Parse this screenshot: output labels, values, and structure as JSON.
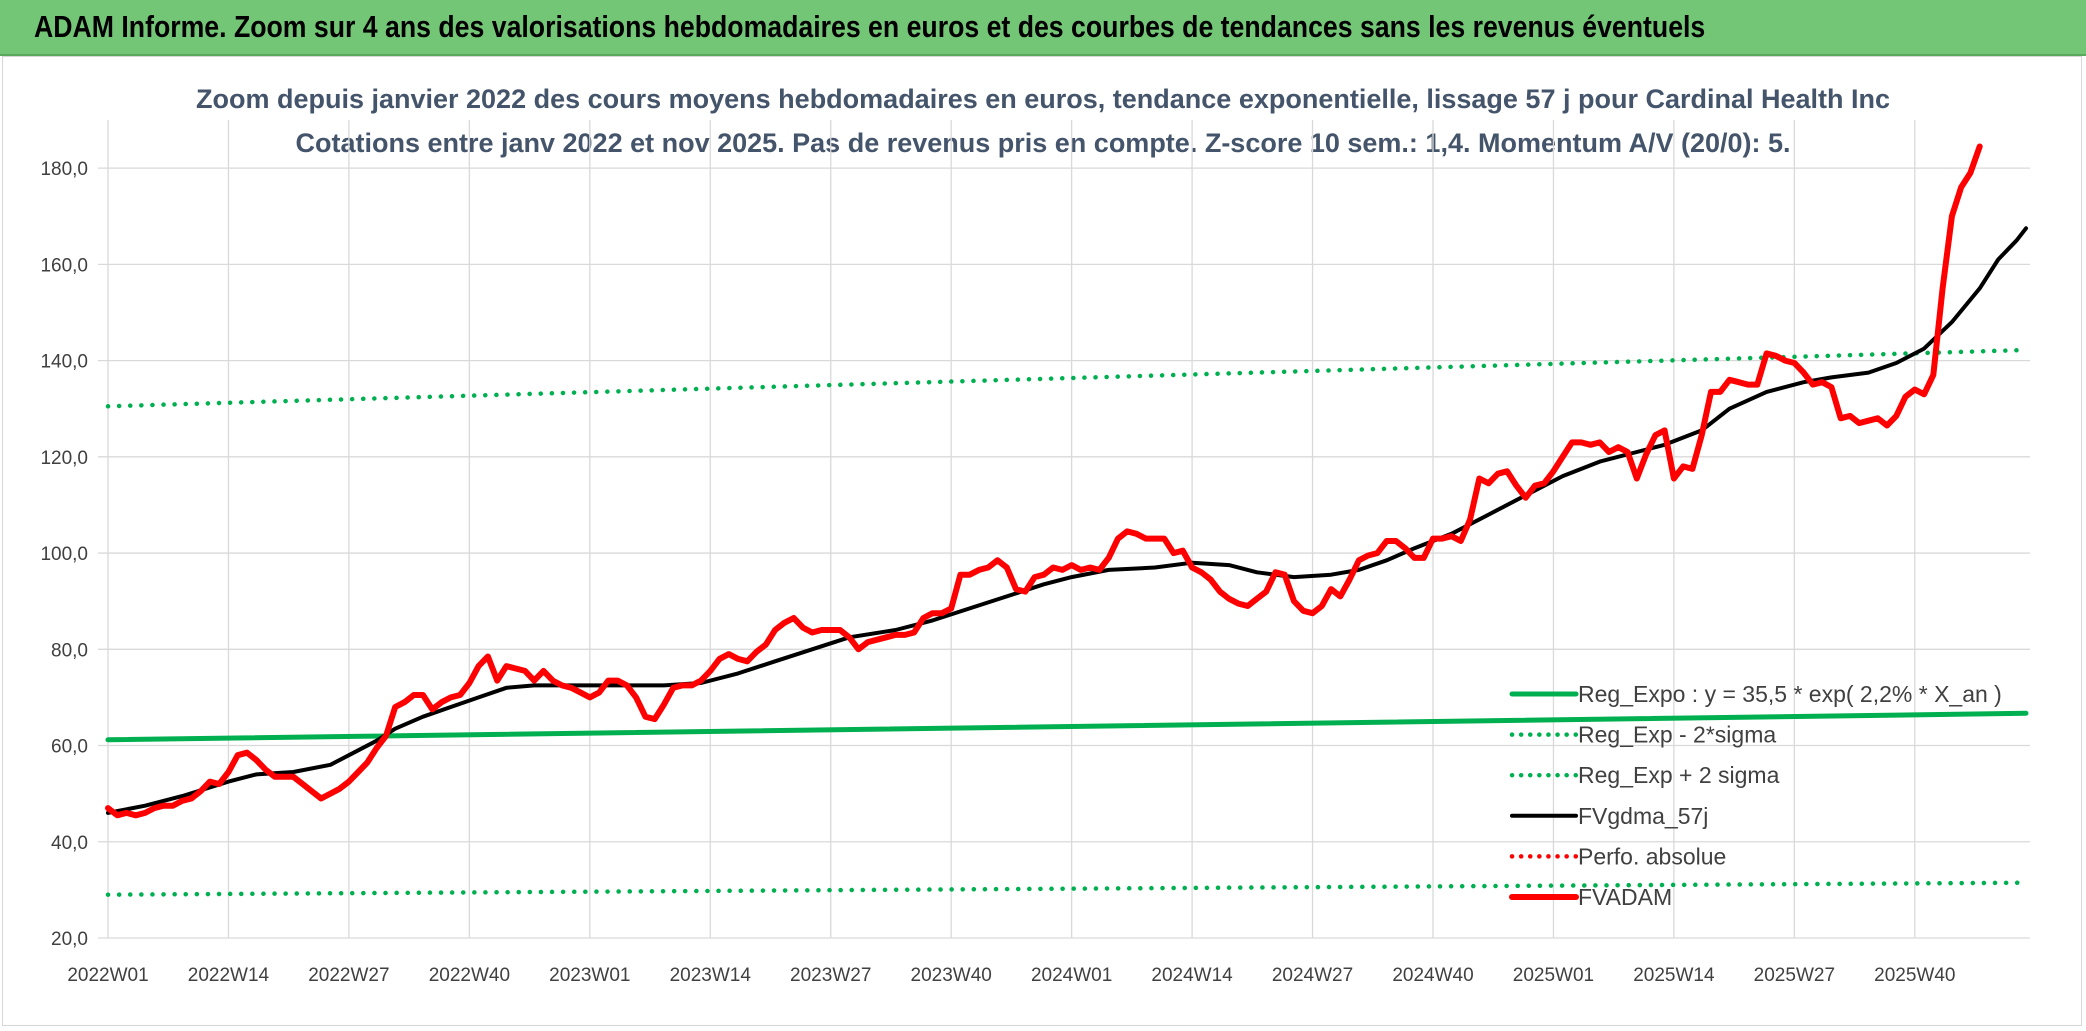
{
  "header": {
    "title": "ADAM Informe. Zoom sur 4 ans des valorisations hebdomadaires en euros et des courbes de tendances sans les revenus éventuels"
  },
  "colors": {
    "banner": "#74c677",
    "reg_expo": "#00b050",
    "sigma": "#00b050",
    "fvgdma": "#000000",
    "perfo": "#ff0000",
    "fvadam": "#ff0000",
    "grid": "#d9d9d9"
  },
  "chart_data": {
    "type": "line",
    "title": "Zoom depuis janvier 2022 des cours moyens hebdomadaires en euros, tendance exponentielle, lissage 57 j pour Cardinal Health Inc",
    "subtitle": "Cotations entre janv 2022 et nov 2025. Pas de revenus pris en compte. Z-score 10 sem.: 1,4. Momentum A/V (20/0): 5.",
    "xlabel": "",
    "ylabel": "",
    "ylim": [
      20,
      190
    ],
    "y_ticks": [
      "20,0",
      "40,0",
      "60,0",
      "80,0",
      "100,0",
      "120,0",
      "140,0",
      "160,0",
      "180,0"
    ],
    "x_tick_labels": [
      "2022W01",
      "2022W14",
      "2022W27",
      "2022W40",
      "2023W01",
      "2023W14",
      "2023W27",
      "2023W40",
      "2024W01",
      "2024W14",
      "2024W27",
      "2024W40",
      "2025W01",
      "2025W14",
      "2025W27",
      "2025W40"
    ],
    "x_tick_weeks": [
      0,
      13,
      26,
      39,
      52,
      65,
      78,
      91,
      104,
      117,
      130,
      143,
      156,
      169,
      182,
      195
    ],
    "x_range_weeks": [
      0,
      207
    ],
    "grid": true,
    "legend_position": "bottom-right",
    "series": [
      {
        "name": "Reg_Expo : y = 35,5 * exp( 2,2% *  X_an )",
        "style": "solid-thick",
        "color": "#00b050",
        "points": [
          [
            0,
            61.2
          ],
          [
            207,
            66.7
          ]
        ]
      },
      {
        "name": "Reg_Exp - 2*sigma",
        "style": "dotted",
        "color": "#00b050",
        "points": [
          [
            0,
            29.0
          ],
          [
            207,
            31.5
          ]
        ]
      },
      {
        "name": "Reg_Exp + 2 sigma",
        "style": "dotted",
        "color": "#00b050",
        "points": [
          [
            0,
            130.5
          ],
          [
            207,
            142.2
          ]
        ]
      },
      {
        "name": "FVgdma_57j",
        "style": "solid",
        "color": "#000000",
        "points": [
          [
            0,
            46
          ],
          [
            4,
            47.5
          ],
          [
            8,
            49.5
          ],
          [
            13,
            52.5
          ],
          [
            16,
            54
          ],
          [
            20,
            54.5
          ],
          [
            24,
            56
          ],
          [
            26,
            58
          ],
          [
            29,
            61
          ],
          [
            31,
            63.5
          ],
          [
            34,
            66
          ],
          [
            37,
            68
          ],
          [
            40,
            70
          ],
          [
            43,
            72
          ],
          [
            46,
            72.5
          ],
          [
            52,
            72.5
          ],
          [
            56,
            72.5
          ],
          [
            60,
            72.5
          ],
          [
            64,
            73
          ],
          [
            68,
            75
          ],
          [
            72,
            77.5
          ],
          [
            76,
            80
          ],
          [
            80,
            82.5
          ],
          [
            85,
            84
          ],
          [
            89,
            86
          ],
          [
            93,
            88.5
          ],
          [
            97,
            91
          ],
          [
            101,
            93.5
          ],
          [
            104,
            95
          ],
          [
            108,
            96.5
          ],
          [
            113,
            97
          ],
          [
            117,
            98
          ],
          [
            121,
            97.5
          ],
          [
            124,
            96
          ],
          [
            128,
            95
          ],
          [
            132,
            95.5
          ],
          [
            135,
            96.5
          ],
          [
            138,
            98.5
          ],
          [
            141,
            101
          ],
          [
            145,
            104
          ],
          [
            149,
            108
          ],
          [
            153,
            112
          ],
          [
            157,
            116
          ],
          [
            161,
            119
          ],
          [
            165,
            121
          ],
          [
            168,
            122.5
          ],
          [
            172,
            125.5
          ],
          [
            175,
            130
          ],
          [
            179,
            133.5
          ],
          [
            183,
            135.5
          ],
          [
            186,
            136.5
          ],
          [
            190,
            137.5
          ],
          [
            193,
            139.5
          ],
          [
            196,
            142.5
          ],
          [
            199,
            148
          ],
          [
            202,
            155
          ],
          [
            204,
            161
          ],
          [
            206,
            165
          ],
          [
            207,
            167.5
          ]
        ]
      },
      {
        "name": "Perfo. absolue",
        "style": "dotted",
        "color": "#ff0000",
        "points": []
      },
      {
        "name": "FVADAM",
        "style": "solid-thick",
        "color": "#ff0000",
        "points": [
          [
            0,
            47
          ],
          [
            1,
            45.5
          ],
          [
            2,
            46
          ],
          [
            3,
            45.5
          ],
          [
            4,
            46
          ],
          [
            5,
            47
          ],
          [
            6,
            47.5
          ],
          [
            7,
            47.5
          ],
          [
            8,
            48.5
          ],
          [
            9,
            49
          ],
          [
            10,
            50.5
          ],
          [
            11,
            52.5
          ],
          [
            12,
            52
          ],
          [
            13,
            54.5
          ],
          [
            14,
            58
          ],
          [
            15,
            58.5
          ],
          [
            16,
            57
          ],
          [
            17,
            55
          ],
          [
            18,
            53.5
          ],
          [
            19,
            53.5
          ],
          [
            20,
            53.5
          ],
          [
            21,
            52
          ],
          [
            22,
            50.5
          ],
          [
            23,
            49
          ],
          [
            24,
            50
          ],
          [
            25,
            51
          ],
          [
            26,
            52.5
          ],
          [
            27,
            54.5
          ],
          [
            28,
            56.5
          ],
          [
            29,
            59.5
          ],
          [
            30,
            62
          ],
          [
            31,
            68
          ],
          [
            32,
            69
          ],
          [
            33,
            70.5
          ],
          [
            34,
            70.5
          ],
          [
            35,
            67.5
          ],
          [
            36,
            69
          ],
          [
            37,
            70
          ],
          [
            38,
            70.5
          ],
          [
            39,
            73
          ],
          [
            40,
            76.5
          ],
          [
            41,
            78.5
          ],
          [
            42,
            73.5
          ],
          [
            43,
            76.5
          ],
          [
            44,
            76
          ],
          [
            45,
            75.5
          ],
          [
            46,
            73.5
          ],
          [
            47,
            75.5
          ],
          [
            48,
            73.5
          ],
          [
            49,
            72.5
          ],
          [
            50,
            72
          ],
          [
            51,
            71
          ],
          [
            52,
            70
          ],
          [
            53,
            71
          ],
          [
            54,
            73.5
          ],
          [
            55,
            73.5
          ],
          [
            56,
            72.5
          ],
          [
            57,
            70
          ],
          [
            58,
            66
          ],
          [
            59,
            65.5
          ],
          [
            60,
            68.5
          ],
          [
            61,
            72
          ],
          [
            62,
            72.5
          ],
          [
            63,
            72.5
          ],
          [
            64,
            73.5
          ],
          [
            65,
            75.5
          ],
          [
            66,
            78
          ],
          [
            67,
            79
          ],
          [
            68,
            78
          ],
          [
            69,
            77.5
          ],
          [
            70,
            79.5
          ],
          [
            71,
            81
          ],
          [
            72,
            84
          ],
          [
            73,
            85.5
          ],
          [
            74,
            86.5
          ],
          [
            75,
            84.5
          ],
          [
            76,
            83.5
          ],
          [
            77,
            84
          ],
          [
            78,
            84
          ],
          [
            79,
            84
          ],
          [
            80,
            82.5
          ],
          [
            81,
            80
          ],
          [
            82,
            81.5
          ],
          [
            83,
            82
          ],
          [
            84,
            82.5
          ],
          [
            85,
            83
          ],
          [
            86,
            83
          ],
          [
            87,
            83.5
          ],
          [
            88,
            86.5
          ],
          [
            89,
            87.5
          ],
          [
            90,
            87.5
          ],
          [
            91,
            88.5
          ],
          [
            92,
            95.5
          ],
          [
            93,
            95.5
          ],
          [
            94,
            96.5
          ],
          [
            95,
            97
          ],
          [
            96,
            98.5
          ],
          [
            97,
            97
          ],
          [
            98,
            92.5
          ],
          [
            99,
            92
          ],
          [
            100,
            95
          ],
          [
            101,
            95.5
          ],
          [
            102,
            97
          ],
          [
            103,
            96.5
          ],
          [
            104,
            97.5
          ],
          [
            105,
            96.5
          ],
          [
            106,
            97
          ],
          [
            107,
            96.5
          ],
          [
            108,
            99
          ],
          [
            109,
            103
          ],
          [
            110,
            104.5
          ],
          [
            111,
            104
          ],
          [
            112,
            103
          ],
          [
            113,
            103
          ],
          [
            114,
            103
          ],
          [
            115,
            100
          ],
          [
            116,
            100.5
          ],
          [
            117,
            97
          ],
          [
            118,
            96
          ],
          [
            119,
            94.5
          ],
          [
            120,
            92
          ],
          [
            121,
            90.5
          ],
          [
            122,
            89.5
          ],
          [
            123,
            89
          ],
          [
            124,
            90.5
          ],
          [
            125,
            92
          ],
          [
            126,
            96
          ],
          [
            127,
            95.5
          ],
          [
            128,
            90
          ],
          [
            129,
            88
          ],
          [
            130,
            87.5
          ],
          [
            131,
            89
          ],
          [
            132,
            92.5
          ],
          [
            133,
            91
          ],
          [
            134,
            94.5
          ],
          [
            135,
            98.5
          ],
          [
            136,
            99.5
          ],
          [
            137,
            100
          ],
          [
            138,
            102.5
          ],
          [
            139,
            102.5
          ],
          [
            140,
            101
          ],
          [
            141,
            99
          ],
          [
            142,
            99
          ],
          [
            143,
            103
          ],
          [
            144,
            103
          ],
          [
            145,
            103.5
          ],
          [
            146,
            102.5
          ],
          [
            147,
            107
          ],
          [
            148,
            115.5
          ],
          [
            149,
            114.5
          ],
          [
            150,
            116.5
          ],
          [
            151,
            117
          ],
          [
            152,
            114
          ],
          [
            153,
            111.5
          ],
          [
            154,
            114
          ],
          [
            155,
            114.5
          ],
          [
            156,
            117
          ],
          [
            157,
            120
          ],
          [
            158,
            123
          ],
          [
            159,
            123
          ],
          [
            160,
            122.5
          ],
          [
            161,
            123
          ],
          [
            162,
            121
          ],
          [
            163,
            122
          ],
          [
            164,
            121
          ],
          [
            165,
            115.5
          ],
          [
            166,
            120.5
          ],
          [
            167,
            124.5
          ],
          [
            168,
            125.5
          ],
          [
            169,
            115.5
          ],
          [
            170,
            118
          ],
          [
            171,
            117.5
          ],
          [
            172,
            124.5
          ],
          [
            173,
            133.5
          ],
          [
            174,
            133.5
          ],
          [
            175,
            136
          ],
          [
            176,
            135.5
          ],
          [
            177,
            135
          ],
          [
            178,
            135
          ],
          [
            179,
            141.5
          ],
          [
            180,
            141
          ],
          [
            181,
            140
          ],
          [
            182,
            139.5
          ],
          [
            183,
            137.5
          ],
          [
            184,
            135
          ],
          [
            185,
            135.5
          ],
          [
            186,
            134.5
          ],
          [
            187,
            128
          ],
          [
            188,
            128.5
          ],
          [
            189,
            127
          ],
          [
            190,
            127.5
          ],
          [
            191,
            128
          ],
          [
            192,
            126.5
          ],
          [
            193,
            128.5
          ],
          [
            194,
            132.5
          ],
          [
            195,
            134
          ],
          [
            196,
            133
          ],
          [
            197,
            137
          ],
          [
            198,
            155
          ],
          [
            199,
            170
          ],
          [
            200,
            176
          ],
          [
            201,
            179
          ],
          [
            202,
            184.5
          ]
        ]
      }
    ]
  }
}
